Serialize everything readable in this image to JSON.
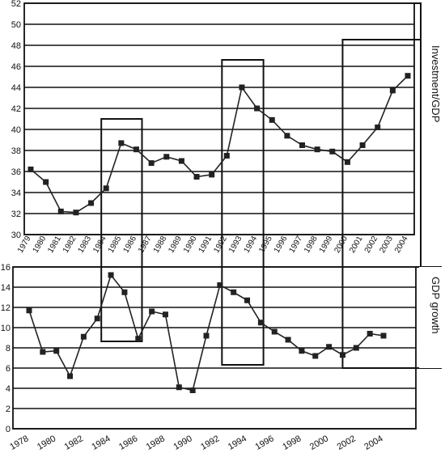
{
  "chart_data": [
    {
      "type": "line",
      "ylabel": "Investment/GDP",
      "ylim": [
        30,
        52
      ],
      "yticks": [
        30,
        32,
        34,
        36,
        38,
        40,
        42,
        44,
        46,
        48,
        50,
        52
      ],
      "grid": true,
      "categories": [
        "1979",
        "1980",
        "1981",
        "1982",
        "1983",
        "1984",
        "1985",
        "1986",
        "1987",
        "1988",
        "1989",
        "1990",
        "1991",
        "1992",
        "1993",
        "1994",
        "1995",
        "1996",
        "1997",
        "1998",
        "1999",
        "2000",
        "2001",
        "2002",
        "2003",
        "2004"
      ],
      "values": [
        36.2,
        35.0,
        32.2,
        32.1,
        33.0,
        34.4,
        38.7,
        38.1,
        36.8,
        37.4,
        37.0,
        35.5,
        35.7,
        37.5,
        44.0,
        42.0,
        40.9,
        39.4,
        38.5,
        38.1,
        37.9,
        36.9,
        38.5,
        40.2,
        43.7,
        45.1
      ],
      "color": "#222222"
    },
    {
      "type": "line",
      "ylabel": "GDP growth",
      "ylim": [
        0,
        16
      ],
      "yticks": [
        0,
        2,
        4,
        6,
        8,
        10,
        12,
        14,
        16
      ],
      "grid": true,
      "x_start": 1978,
      "x_end": 2004,
      "xtick_labels": [
        "1978",
        "1980",
        "1982",
        "1984",
        "1986",
        "1988",
        "1990",
        "1992",
        "1994",
        "1996",
        "1998",
        "2000",
        "2002",
        "2004"
      ],
      "x": [
        1978,
        1979,
        1980,
        1981,
        1982,
        1983,
        1984,
        1985,
        1986,
        1987,
        1988,
        1989,
        1990,
        1991,
        1992,
        1993,
        1994,
        1995,
        1996,
        1997,
        1998,
        1999,
        2000,
        2001,
        2002,
        2003,
        2004
      ],
      "values": [
        11.7,
        7.6,
        7.7,
        5.2,
        9.1,
        10.9,
        15.2,
        13.5,
        8.9,
        11.6,
        11.3,
        4.1,
        3.8,
        9.2,
        14.2,
        13.5,
        12.7,
        10.5,
        9.6,
        8.8,
        7.7,
        7.2,
        8.1,
        7.3,
        8.0,
        9.4,
        9.2
      ],
      "color": "#222222"
    }
  ],
  "highlight_periods": [
    {
      "start": "1984",
      "end": "1986"
    },
    {
      "start": "1992",
      "end": "1994"
    },
    {
      "start": "2000",
      "end": "2004"
    }
  ]
}
